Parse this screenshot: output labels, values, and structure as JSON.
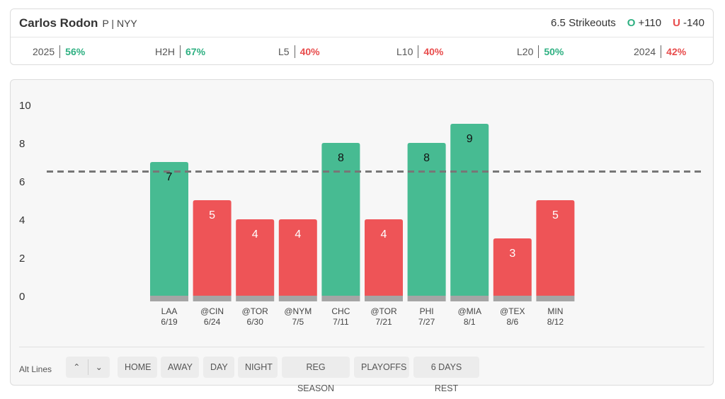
{
  "player": {
    "name": "Carlos Rodon",
    "meta": "P | NYY"
  },
  "line": {
    "prop": "6.5 Strikeouts",
    "over_badge": "O",
    "over_odds": "+110",
    "under_badge": "U",
    "under_odds": "-140"
  },
  "stats": [
    {
      "label": "2025",
      "value": "56%",
      "status": "green"
    },
    {
      "label": "H2H",
      "value": "67%",
      "status": "green"
    },
    {
      "label": "L5",
      "value": "40%",
      "status": "red"
    },
    {
      "label": "L10",
      "value": "40%",
      "status": "red"
    },
    {
      "label": "L20",
      "value": "50%",
      "status": "green"
    },
    {
      "label": "2024",
      "value": "42%",
      "status": "red"
    }
  ],
  "colors": {
    "over": "#47bb92",
    "under": "#ee5457",
    "base": "#a5a5a5",
    "line": "#777777"
  },
  "chart_data": {
    "type": "bar",
    "threshold": 6.5,
    "ylim": [
      0,
      10
    ],
    "yticks": [
      "0",
      "2",
      "4",
      "6",
      "8",
      "10"
    ],
    "categories": [
      "LAA",
      "@CIN",
      "@TOR",
      "@NYM",
      "CHC",
      "@TOR",
      "PHI",
      "@MIA",
      "@TEX",
      "MIN"
    ],
    "dates": [
      "6/19",
      "6/24",
      "6/30",
      "7/5",
      "7/11",
      "7/21",
      "7/27",
      "8/1",
      "8/6",
      "8/12"
    ],
    "values": [
      7,
      5,
      4,
      4,
      8,
      4,
      8,
      9,
      3,
      5
    ],
    "value_labels": [
      "7",
      "5",
      "4",
      "4",
      "8",
      "4",
      "8",
      "9",
      "3",
      "5"
    ]
  },
  "controls": {
    "alt_lines_label": "Alt Lines",
    "up_icon": "chevron-up-icon",
    "up_glyph": "⌃",
    "down_icon": "chevron-down-icon",
    "down_glyph": "⌄",
    "filters": [
      "HOME",
      "AWAY",
      "DAY",
      "NIGHT",
      "REG SEASON",
      "PLAYOFFS",
      "6 DAYS REST"
    ]
  }
}
